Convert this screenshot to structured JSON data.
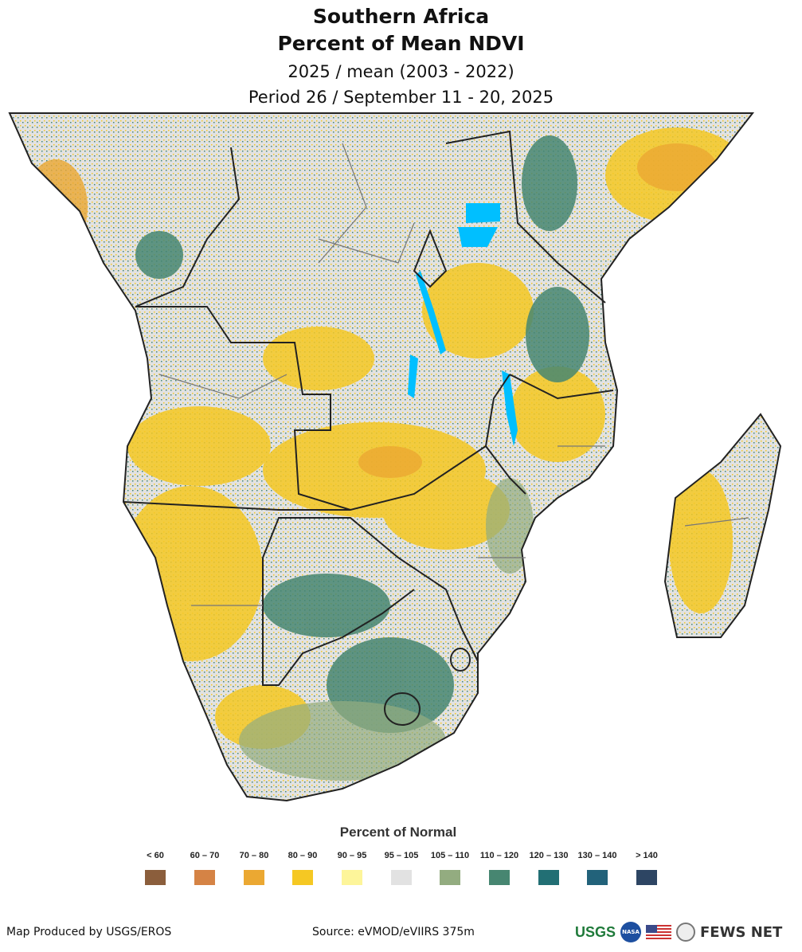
{
  "header": {
    "title_line1": "Southern Africa",
    "title_line2": "Percent of Mean NDVI",
    "subtitle_line1": "2025 / mean (2003 - 2022)",
    "subtitle_line2": "Period 26 / September 11 - 20, 2025"
  },
  "legend": {
    "title": "Percent of Normal",
    "items": [
      {
        "label": "< 60",
        "color": "#8b5e3c"
      },
      {
        "label": "60 – 70",
        "color": "#d58345"
      },
      {
        "label": "70 – 80",
        "color": "#eba832"
      },
      {
        "label": "80 – 90",
        "color": "#f5c823"
      },
      {
        "label": "90 – 95",
        "color": "#fdf59a"
      },
      {
        "label": "95 – 105",
        "color": "#e2e2e2"
      },
      {
        "label": "105 – 110",
        "color": "#93ac80"
      },
      {
        "label": "110 – 120",
        "color": "#478671"
      },
      {
        "label": "120 – 130",
        "color": "#226f74"
      },
      {
        "label": "130 – 140",
        "color": "#22627a"
      },
      {
        "label": "> 140",
        "color": "#2d4563"
      }
    ]
  },
  "footer": {
    "producer": "Map Produced by USGS/EROS",
    "source": "Source: eVMOD/eVIIRS 375m",
    "logos": {
      "usgs": "USGS",
      "nasa": "NASA",
      "fews": "FEWS NET"
    }
  }
}
